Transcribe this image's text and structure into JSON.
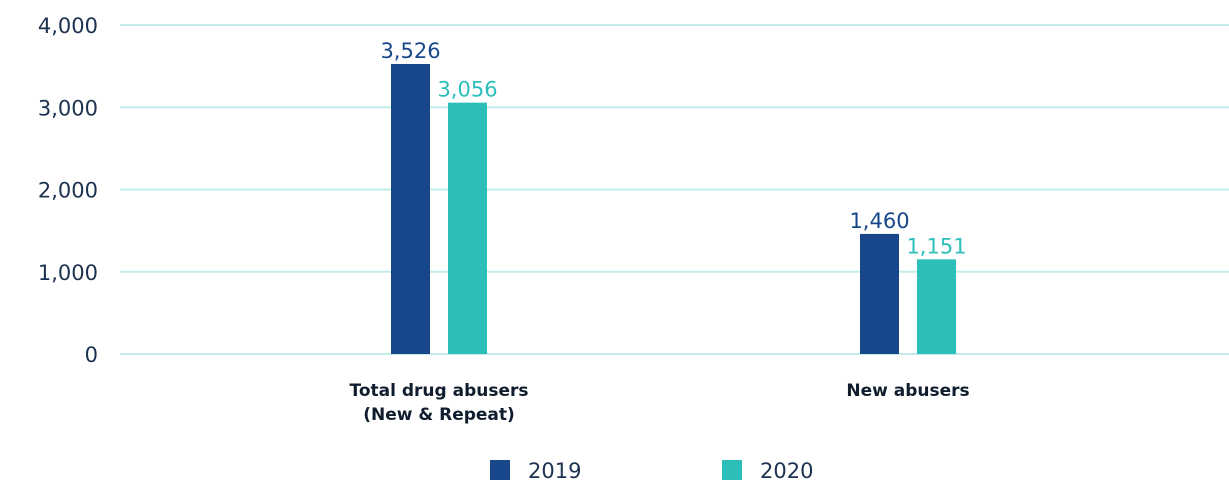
{
  "chart_data": {
    "type": "bar",
    "categories": [
      [
        "Total drug abusers",
        "(New & Repeat)"
      ],
      [
        "New abusers"
      ]
    ],
    "series": [
      {
        "name": "2019",
        "values": [
          3526,
          1460
        ],
        "labels": [
          "3,526",
          "1,460"
        ],
        "color": "#17478a"
      },
      {
        "name": "2020",
        "values": [
          3056,
          1151
        ],
        "labels": [
          "3,056",
          "1,151"
        ],
        "color": "#2cbfba"
      }
    ],
    "yticks": [
      {
        "value": 0,
        "label": "0"
      },
      {
        "value": 1000,
        "label": "1,000"
      },
      {
        "value": 2000,
        "label": "2,000"
      },
      {
        "value": 3000,
        "label": "3,000"
      },
      {
        "value": 4000,
        "label": "4,000"
      }
    ],
    "ylim": [
      0,
      4000
    ],
    "grid": true,
    "grid_color": "#c2ecea",
    "legend_position": "bottom"
  }
}
